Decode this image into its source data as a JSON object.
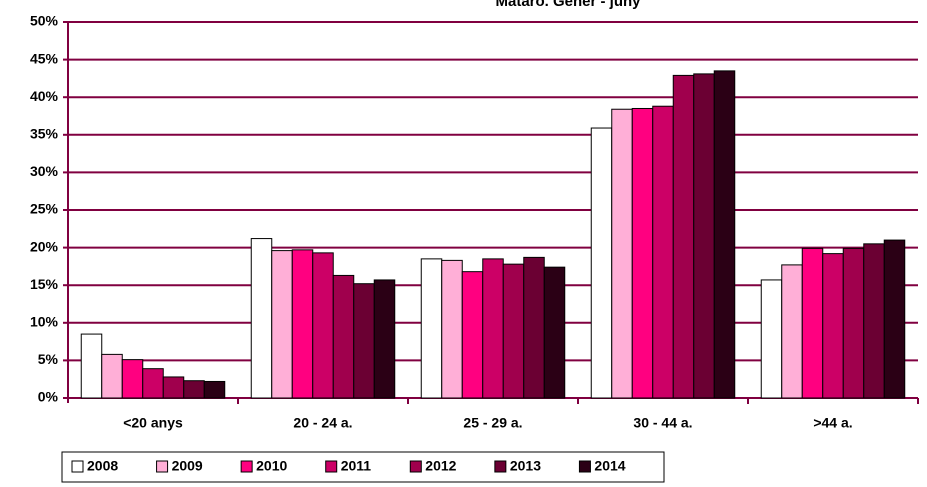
{
  "chart_data": {
    "type": "bar",
    "title": "Mataró. Gener - juny",
    "categories": [
      "<20 anys",
      "20 - 24 a.",
      "25 - 29 a.",
      "30 - 44 a.",
      ">44 a."
    ],
    "series": [
      {
        "name": "2008",
        "color": "#ffffff",
        "values": [
          8.5,
          21.2,
          18.5,
          35.9,
          15.7
        ]
      },
      {
        "name": "2009",
        "color": "#ffafd7",
        "values": [
          5.8,
          19.6,
          18.3,
          38.4,
          17.7
        ]
      },
      {
        "name": "2010",
        "color": "#ff0080",
        "values": [
          5.1,
          19.7,
          16.8,
          38.5,
          19.9
        ]
      },
      {
        "name": "2011",
        "color": "#cc0066",
        "values": [
          3.9,
          19.3,
          18.5,
          38.8,
          19.2
        ]
      },
      {
        "name": "2012",
        "color": "#a0004d",
        "values": [
          2.8,
          16.3,
          17.8,
          42.9,
          19.9
        ]
      },
      {
        "name": "2013",
        "color": "#6b0033",
        "values": [
          2.3,
          15.2,
          18.7,
          43.1,
          20.5
        ]
      },
      {
        "name": "2014",
        "color": "#2b0015",
        "values": [
          2.2,
          15.7,
          17.4,
          43.5,
          21.0
        ]
      }
    ],
    "ylim": [
      0,
      50
    ],
    "yticks": [
      {
        "value": 0,
        "label": "0%"
      },
      {
        "value": 5,
        "label": "5%"
      },
      {
        "value": 10,
        "label": "10%"
      },
      {
        "value": 15,
        "label": "15%"
      },
      {
        "value": 20,
        "label": "20%"
      },
      {
        "value": 25,
        "label": "25%"
      },
      {
        "value": 30,
        "label": "30%"
      },
      {
        "value": 35,
        "label": "35%"
      },
      {
        "value": 40,
        "label": "40%"
      },
      {
        "value": 45,
        "label": "45%"
      },
      {
        "value": 50,
        "label": "50%"
      }
    ],
    "grid": true,
    "legend": "bottom"
  }
}
